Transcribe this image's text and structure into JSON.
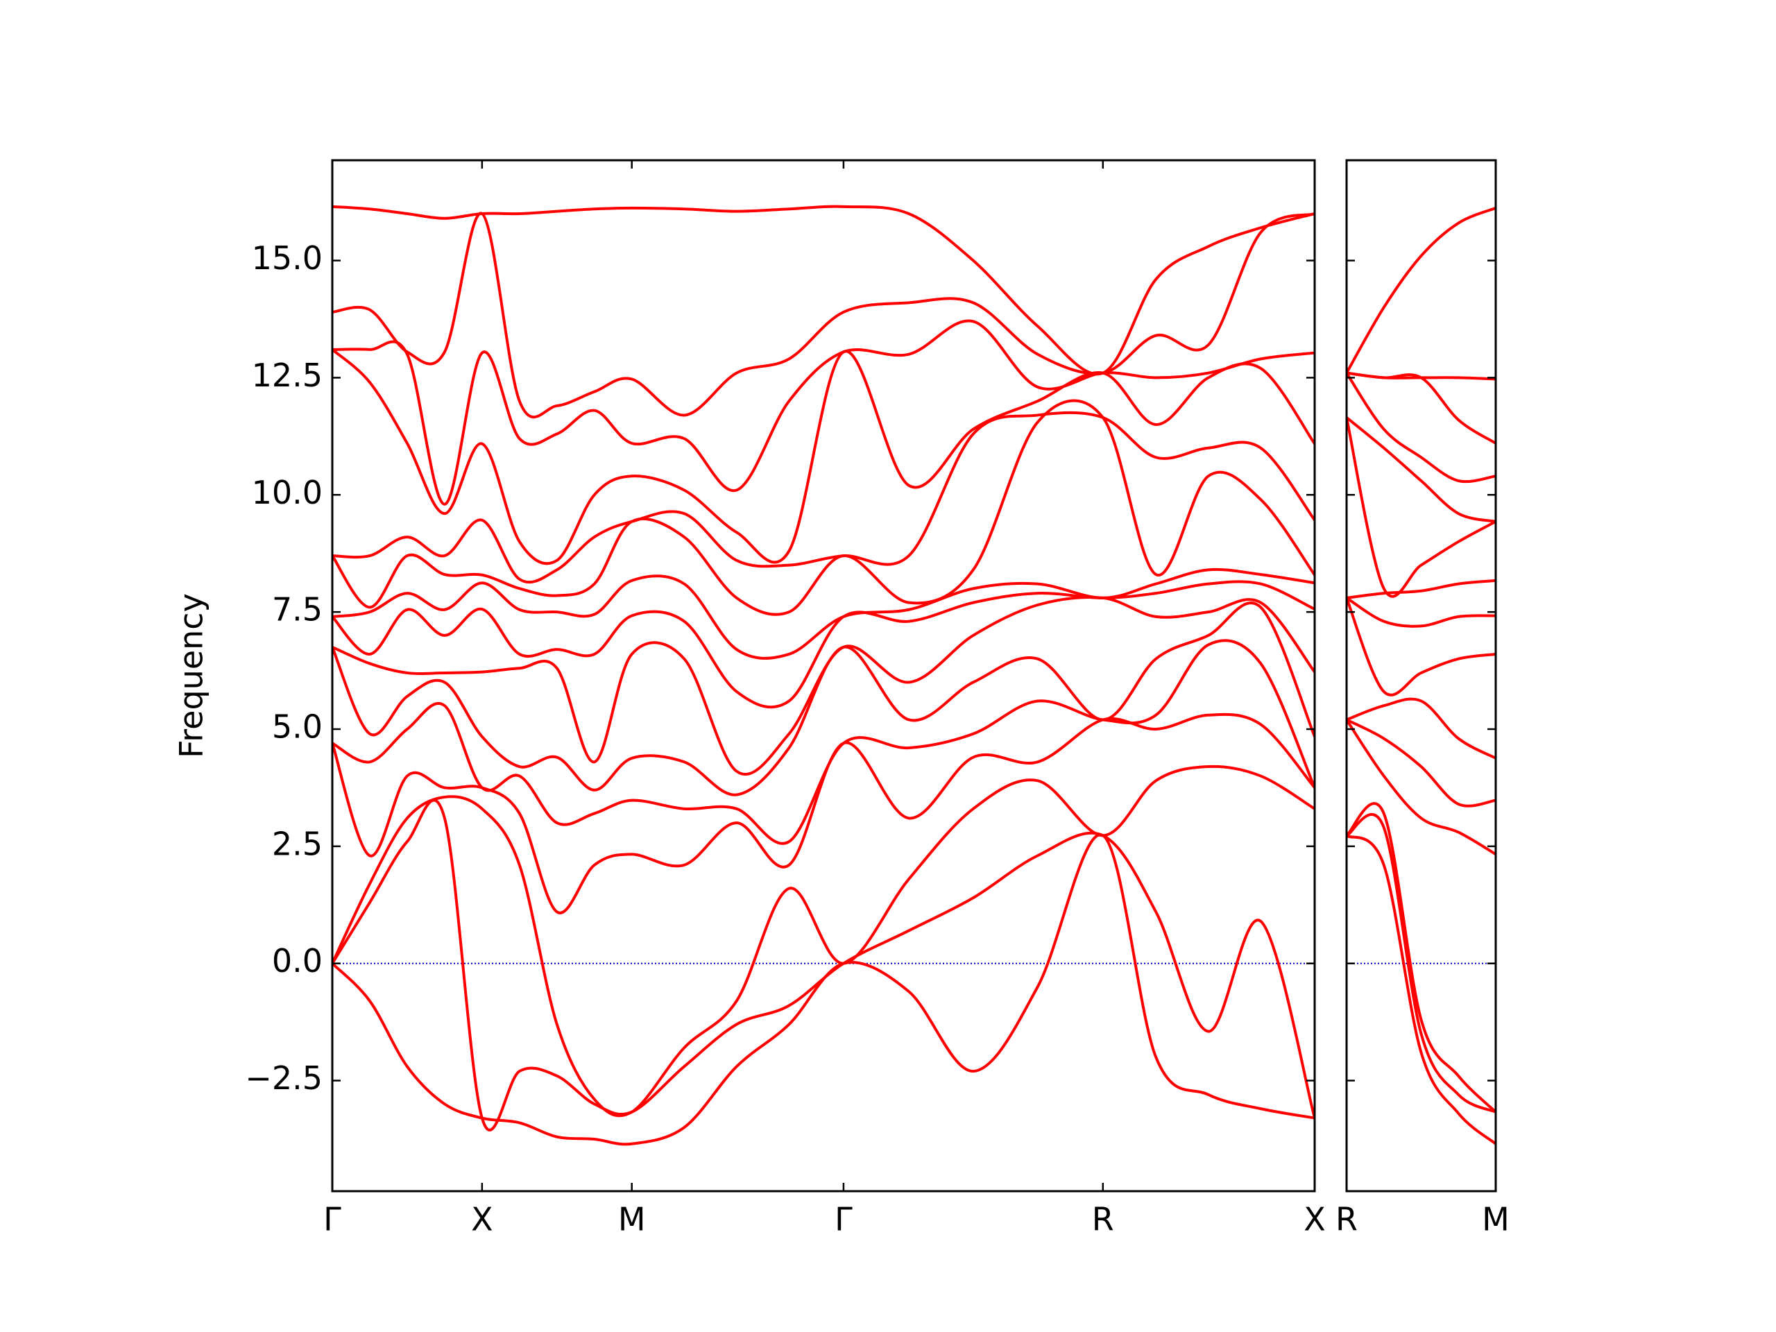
{
  "chart_data": [
    {
      "type": "line",
      "ylabel": "Frequency",
      "line_color": "#ff0000",
      "zero_line": {
        "value": 0,
        "color": "#0000cc"
      },
      "x": [
        0,
        0.25,
        0.5,
        0.75,
        1,
        1.25,
        1.5,
        1.75,
        2,
        2.35,
        2.7,
        3.05,
        3.414,
        3.85,
        4.28,
        4.71,
        5.146,
        5.5,
        5.85,
        6.2,
        6.56
      ],
      "xlim": [
        0,
        6.56
      ],
      "xticks": [
        {
          "value": 0,
          "label": "Γ"
        },
        {
          "value": 1,
          "label": "X"
        },
        {
          "value": 2,
          "label": "M"
        },
        {
          "value": 3.414,
          "label": "Γ"
        },
        {
          "value": 5.146,
          "label": "R"
        },
        {
          "value": 6.56,
          "label": "X"
        }
      ],
      "ylim": [
        -4.86,
        17.14
      ],
      "yticks": [
        {
          "value": -2.5,
          "label": "−2.5"
        },
        {
          "value": 0,
          "label": "0.0"
        },
        {
          "value": 2.5,
          "label": "2.5"
        },
        {
          "value": 5,
          "label": "5.0"
        },
        {
          "value": 7.5,
          "label": "7.5"
        },
        {
          "value": 10,
          "label": "10.0"
        },
        {
          "value": 12.5,
          "label": "12.5"
        },
        {
          "value": 15,
          "label": "15.0"
        }
      ],
      "series": [
        {
          "values": [
            0,
            -0.8,
            -2.2,
            -3.0,
            -3.3,
            -3.4,
            -3.7,
            -3.75,
            -3.85,
            -3.5,
            -2.2,
            -1.3,
            0,
            -0.6,
            -2.3,
            -0.5,
            2.73,
            -2.0,
            -2.8,
            -3.1,
            -3.3
          ]
        },
        {
          "values": [
            0,
            1.3,
            2.6,
            3.1,
            -3.3,
            -2.3,
            -2.4,
            -3.0,
            -3.17,
            -2.2,
            -1.3,
            -0.9,
            0,
            0.7,
            1.4,
            2.3,
            2.73,
            1.1,
            -1.45,
            0.9,
            -3.3
          ]
        },
        {
          "values": [
            0,
            1.7,
            3.1,
            3.55,
            3.3,
            2.1,
            -1.3,
            -2.9,
            -3.17,
            -1.8,
            -0.8,
            1.6,
            0,
            1.8,
            3.3,
            3.9,
            2.73,
            3.9,
            4.2,
            4.0,
            3.3
          ]
        },
        {
          "values": [
            4.7,
            2.3,
            4.0,
            3.75,
            3.75,
            3.2,
            1.1,
            2.1,
            2.33,
            2.1,
            3.0,
            2.1,
            4.7,
            3.1,
            4.4,
            4.3,
            5.2,
            5.0,
            5.3,
            5.1,
            3.75
          ]
        },
        {
          "values": [
            4.7,
            4.3,
            5.0,
            5.5,
            3.75,
            4.0,
            3.0,
            3.2,
            3.48,
            3.3,
            3.3,
            2.6,
            4.7,
            4.6,
            4.9,
            5.6,
            5.2,
            5.3,
            6.8,
            6.4,
            3.75
          ]
        },
        {
          "values": [
            6.75,
            4.9,
            5.7,
            6.0,
            4.84,
            4.2,
            4.4,
            3.7,
            4.38,
            4.3,
            3.6,
            4.6,
            6.75,
            5.2,
            6.0,
            6.5,
            5.2,
            6.5,
            7.0,
            7.6,
            4.84
          ]
        },
        {
          "values": [
            6.75,
            6.4,
            6.2,
            6.2,
            6.22,
            6.3,
            6.3,
            4.3,
            6.6,
            6.5,
            4.1,
            4.9,
            6.75,
            6.0,
            7.0,
            7.65,
            7.8,
            7.4,
            7.5,
            7.7,
            6.22
          ]
        },
        {
          "values": [
            7.4,
            6.6,
            7.55,
            7.0,
            7.56,
            6.6,
            6.7,
            6.6,
            7.42,
            7.3,
            5.8,
            5.6,
            7.4,
            7.3,
            7.7,
            7.9,
            7.8,
            7.9,
            8.1,
            8.1,
            7.56
          ]
        },
        {
          "values": [
            7.4,
            7.5,
            7.9,
            7.55,
            8.12,
            7.55,
            7.5,
            7.45,
            8.17,
            8.1,
            6.7,
            6.6,
            7.4,
            7.55,
            8.0,
            8.1,
            7.8,
            8.1,
            8.4,
            8.3,
            8.12
          ]
        },
        {
          "values": [
            8.7,
            7.6,
            8.7,
            8.3,
            8.29,
            8.0,
            7.85,
            8.1,
            9.43,
            9.1,
            7.8,
            7.5,
            8.7,
            7.7,
            8.4,
            11.55,
            11.65,
            8.3,
            10.4,
            9.9,
            8.29
          ]
        },
        {
          "values": [
            8.7,
            8.7,
            9.1,
            8.7,
            9.46,
            8.2,
            8.4,
            9.1,
            9.43,
            9.6,
            8.6,
            8.5,
            8.7,
            8.7,
            11.3,
            11.7,
            11.65,
            10.8,
            11.0,
            11.0,
            9.46
          ]
        },
        {
          "values": [
            13.1,
            12.4,
            11.1,
            9.6,
            11.09,
            9.0,
            8.6,
            10.0,
            10.4,
            10.1,
            9.2,
            8.8,
            13.05,
            10.2,
            11.4,
            12.0,
            12.6,
            11.5,
            12.5,
            12.7,
            11.09
          ]
        },
        {
          "values": [
            13.1,
            13.1,
            13.0,
            9.8,
            13.03,
            11.2,
            11.3,
            11.8,
            11.1,
            11.2,
            10.1,
            12.0,
            13.05,
            13.0,
            13.7,
            12.3,
            12.6,
            12.5,
            12.6,
            12.9,
            13.03
          ]
        },
        {
          "values": [
            13.9,
            13.95,
            13.05,
            13.05,
            16.0,
            12.0,
            11.9,
            12.2,
            12.47,
            11.7,
            12.6,
            12.9,
            13.9,
            14.1,
            14.1,
            13.0,
            12.6,
            13.4,
            13.2,
            15.6,
            16.0
          ]
        },
        {
          "values": [
            16.15,
            16.1,
            16.0,
            15.9,
            16.0,
            16.0,
            16.05,
            16.1,
            16.12,
            16.1,
            16.05,
            16.1,
            16.15,
            16.0,
            15.0,
            13.6,
            12.6,
            14.6,
            15.3,
            15.7,
            16.0
          ]
        }
      ]
    },
    {
      "type": "line",
      "line_color": "#ff0000",
      "zero_line": {
        "value": 0,
        "color": "#0000cc"
      },
      "x": [
        0,
        0.25,
        0.5,
        0.75,
        1
      ],
      "xlim": [
        0,
        1
      ],
      "xticks": [
        {
          "value": 0,
          "label": "R"
        },
        {
          "value": 1,
          "label": "M"
        }
      ],
      "ylim": [
        -4.86,
        17.14
      ],
      "yticks": [
        -2.5,
        0,
        2.5,
        5,
        7.5,
        10,
        12.5,
        15
      ],
      "ytick_labels": false,
      "series": [
        {
          "values": [
            2.73,
            2.1,
            -1.9,
            -3.2,
            -3.85
          ]
        },
        {
          "values": [
            2.73,
            2.9,
            -1.5,
            -2.8,
            -3.17
          ]
        },
        {
          "values": [
            2.73,
            3.2,
            -1.2,
            -2.4,
            -3.17
          ]
        },
        {
          "values": [
            5.2,
            4.0,
            3.1,
            2.8,
            2.33
          ]
        },
        {
          "values": [
            5.2,
            4.8,
            4.2,
            3.4,
            3.48
          ]
        },
        {
          "values": [
            5.2,
            5.5,
            5.6,
            4.8,
            4.38
          ]
        },
        {
          "values": [
            7.8,
            5.8,
            6.2,
            6.5,
            6.6
          ]
        },
        {
          "values": [
            7.8,
            7.3,
            7.2,
            7.4,
            7.42
          ]
        },
        {
          "values": [
            7.8,
            7.9,
            7.95,
            8.1,
            8.17
          ]
        },
        {
          "values": [
            11.65,
            8.0,
            8.5,
            9.0,
            9.43
          ]
        },
        {
          "values": [
            11.65,
            11.0,
            10.3,
            9.6,
            9.43
          ]
        },
        {
          "values": [
            12.6,
            11.4,
            10.8,
            10.3,
            10.4
          ]
        },
        {
          "values": [
            12.6,
            12.5,
            12.5,
            11.6,
            11.1
          ]
        },
        {
          "values": [
            12.6,
            12.5,
            12.5,
            12.5,
            12.47
          ]
        },
        {
          "values": [
            12.6,
            14.0,
            15.1,
            15.8,
            16.12
          ]
        }
      ]
    }
  ]
}
